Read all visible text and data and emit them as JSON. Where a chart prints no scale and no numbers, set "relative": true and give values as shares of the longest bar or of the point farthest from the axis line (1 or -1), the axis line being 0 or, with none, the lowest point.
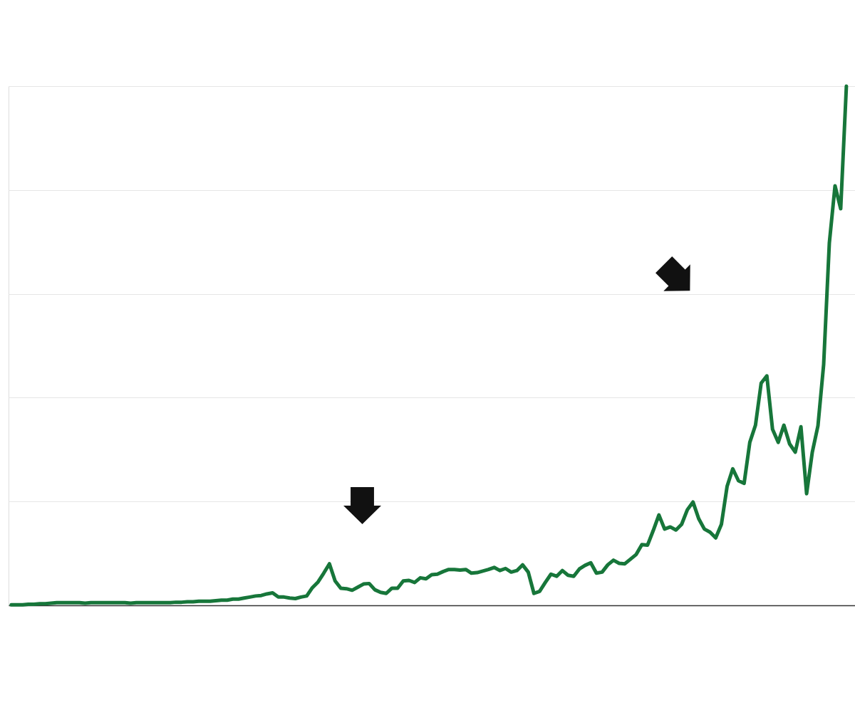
{
  "chart_data": {
    "type": "line",
    "relative": true,
    "grid": "y",
    "tick_labels": false,
    "line_style": "solid",
    "categories": [
      null,
      null,
      null,
      null,
      null,
      null,
      null,
      null,
      null,
      null,
      null,
      null,
      null,
      null,
      null,
      null,
      null,
      null,
      null,
      null,
      null,
      null,
      null,
      null,
      null,
      null,
      null,
      null,
      null,
      null,
      null,
      null,
      null,
      null,
      null,
      null,
      null,
      null,
      null,
      null,
      null,
      null,
      null,
      null,
      null,
      null,
      null,
      null,
      null,
      null,
      null,
      null,
      null,
      null,
      null,
      null,
      null,
      null,
      null,
      null,
      null,
      null,
      null,
      null,
      null,
      null,
      null,
      null,
      null,
      null,
      null,
      null,
      null,
      null,
      null,
      null,
      null,
      null,
      null,
      null,
      null,
      null,
      null,
      null,
      null,
      null,
      null,
      null,
      null,
      null,
      null,
      null,
      null,
      null,
      null,
      null,
      null,
      null,
      null,
      null,
      null,
      null,
      null,
      null,
      null,
      null,
      null,
      null,
      null,
      null,
      null,
      null,
      null,
      null,
      null,
      null,
      null,
      null,
      null,
      null,
      null,
      null,
      null,
      null,
      null,
      null,
      null,
      null,
      null,
      null,
      null,
      null,
      null,
      null,
      null,
      null,
      null,
      null,
      null,
      null,
      null,
      null,
      null,
      null,
      null,
      null,
      null,
      null
    ],
    "series": [
      {
        "color": "#17763a",
        "values": [
          0.001,
          0.001,
          0.001,
          0.002,
          0.002,
          0.003,
          0.003,
          0.004,
          0.005,
          0.005,
          0.005,
          0.005,
          0.005,
          0.004,
          0.005,
          0.005,
          0.005,
          0.005,
          0.005,
          0.005,
          0.005,
          0.004,
          0.005,
          0.005,
          0.005,
          0.005,
          0.005,
          0.005,
          0.005,
          0.006,
          0.006,
          0.007,
          0.007,
          0.008,
          0.008,
          0.008,
          0.009,
          0.01,
          0.01,
          0.012,
          0.012,
          0.014,
          0.016,
          0.018,
          0.019,
          0.022,
          0.024,
          0.016,
          0.016,
          0.014,
          0.013,
          0.016,
          0.018,
          0.034,
          0.045,
          0.062,
          0.08,
          0.047,
          0.033,
          0.032,
          0.029,
          0.035,
          0.041,
          0.042,
          0.03,
          0.025,
          0.023,
          0.033,
          0.033,
          0.047,
          0.048,
          0.044,
          0.053,
          0.051,
          0.059,
          0.06,
          0.065,
          0.069,
          0.069,
          0.068,
          0.069,
          0.062,
          0.063,
          0.066,
          0.069,
          0.073,
          0.067,
          0.071,
          0.064,
          0.067,
          0.078,
          0.064,
          0.023,
          0.027,
          0.044,
          0.06,
          0.056,
          0.067,
          0.058,
          0.056,
          0.07,
          0.077,
          0.082,
          0.062,
          0.064,
          0.078,
          0.087,
          0.081,
          0.08,
          0.089,
          0.098,
          0.117,
          0.116,
          0.144,
          0.174,
          0.147,
          0.151,
          0.145,
          0.156,
          0.184,
          0.199,
          0.167,
          0.147,
          0.141,
          0.13,
          0.156,
          0.229,
          0.263,
          0.24,
          0.235,
          0.314,
          0.347,
          0.428,
          0.442,
          0.339,
          0.314,
          0.347,
          0.311,
          0.295,
          0.344,
          0.215,
          0.295,
          0.346,
          0.464,
          0.698,
          0.808,
          0.764,
          1
        ]
      }
    ]
  }
}
